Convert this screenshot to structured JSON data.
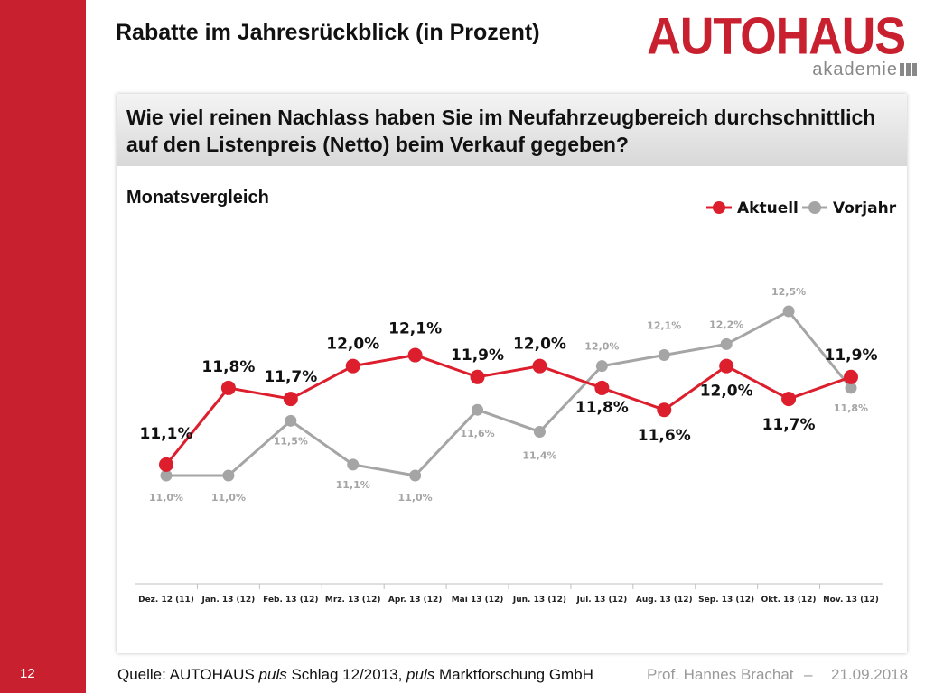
{
  "slide": {
    "title": "Rabatte im Jahresrückblick (in Prozent)",
    "page_number": "12",
    "question": "Wie viel reinen Nachlass haben Sie im Neufahrzeugbereich durchschnittlich auf den Listenpreis (Netto) beim Verkauf gegeben?",
    "subtitle": "Monatsvergleich",
    "footer_source_prefix": "Quelle: AUTOHAUS ",
    "footer_source_em1": "puls",
    "footer_source_mid": " Schlag 12/2013, ",
    "footer_source_em2": "puls",
    "footer_source_suffix": " Marktforschung GmbH",
    "footer_author": "Prof. Hannes Brachat",
    "footer_separator": "–",
    "footer_date": "21.09.2018"
  },
  "logo": {
    "main": "AUTOHAUS",
    "sub": "akademie",
    "color": "#c8202f"
  },
  "colors": {
    "accent": "#c8202f",
    "series_current": "#dc1e2d",
    "series_previous": "#a5a5a5"
  },
  "chart_data": {
    "type": "line",
    "categories": [
      "Dez. 12 (11)",
      "Jan. 13 (12)",
      "Feb. 13 (12)",
      "Mrz. 13 (12)",
      "Apr. 13 (12)",
      "Mai 13 (12)",
      "Jun. 13 (12)",
      "Jul. 13 (12)",
      "Aug. 13 (12)",
      "Sep. 13 (12)",
      "Okt. 13 (12)",
      "Nov. 13 (12)"
    ],
    "series": [
      {
        "name": "Aktuell",
        "values": [
          11.1,
          11.8,
          11.7,
          12.0,
          12.1,
          11.9,
          12.0,
          11.8,
          11.6,
          12.0,
          11.7,
          11.9
        ],
        "labels": [
          "11,1%",
          "11,8%",
          "11,7%",
          "12,0%",
          "12,1%",
          "11,9%",
          "12,0%",
          "11,8%",
          "11,6%",
          "12,0%",
          "11,7%",
          "11,9%"
        ],
        "color": "#dc1e2d"
      },
      {
        "name": "Vorjahr",
        "values": [
          11.0,
          11.0,
          11.5,
          11.1,
          11.0,
          11.6,
          11.4,
          12.0,
          12.1,
          12.2,
          12.5,
          11.8
        ],
        "labels": [
          "11,0%",
          "11,0%",
          "11,5%",
          "11,1%",
          "11,0%",
          "11,6%",
          "11,4%",
          "12,0%",
          "12,1%",
          "12,2%",
          "12,5%",
          "11,8%"
        ],
        "color": "#a5a5a5"
      }
    ],
    "legend": "top-right",
    "grid": false
  }
}
